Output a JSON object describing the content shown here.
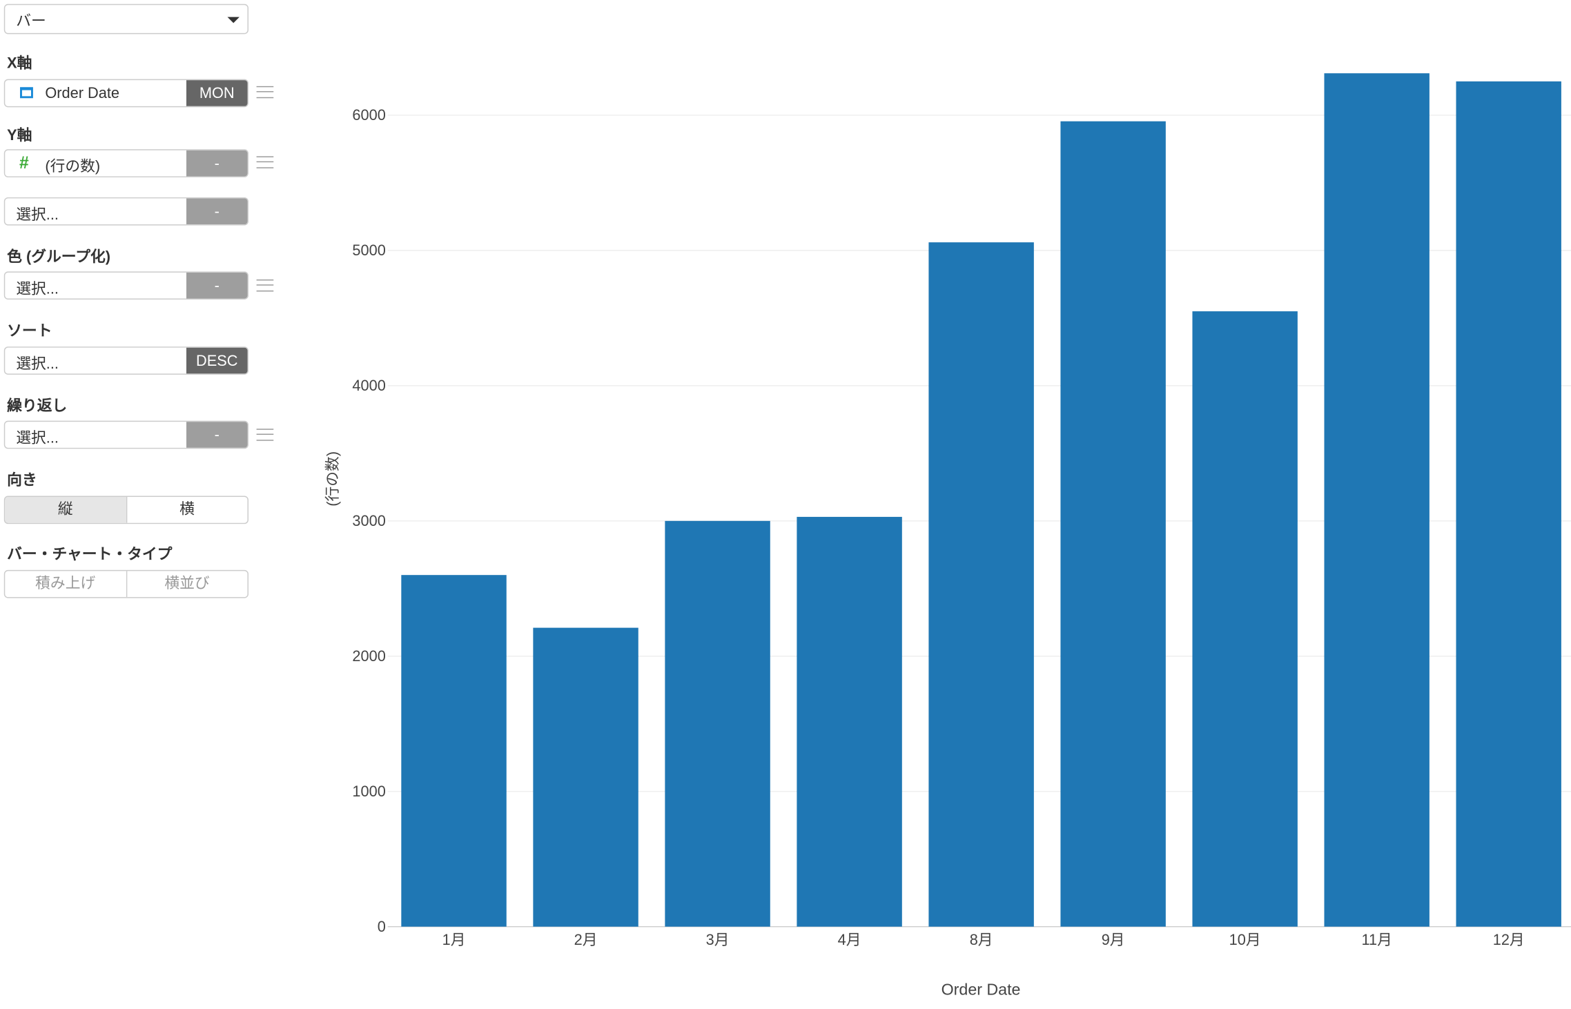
{
  "panel": {
    "chart_type": "バー",
    "x_axis": {
      "label": "X軸",
      "field": "Order Date",
      "field_icon": "calendar-icon",
      "unit": "MON"
    },
    "y_axis": {
      "label": "Y軸",
      "field": "(行の数)",
      "field_icon": "hash-icon",
      "agg": "-",
      "second_field": "選択...",
      "second_agg": "-"
    },
    "color": {
      "label": "色 (グループ化)",
      "field": "選択...",
      "agg": "-"
    },
    "sort": {
      "label": "ソート",
      "field": "選択...",
      "order": "DESC"
    },
    "repeat": {
      "label": "繰り返し",
      "field": "選択...",
      "agg": "-"
    },
    "orientation": {
      "label": "向き",
      "options": [
        "縦",
        "横"
      ],
      "selected": "縦"
    },
    "bar_type": {
      "label": "バー・チャート・タイプ",
      "options": [
        "積み上げ",
        "横並び"
      ]
    }
  },
  "colors": {
    "bar": "#1f77b4",
    "calendar_icon": "#1a8ad8",
    "hash_icon": "#3aaa35"
  },
  "chart_data": {
    "type": "bar",
    "categories": [
      "1月",
      "2月",
      "3月",
      "4月",
      "8月",
      "9月",
      "10月",
      "11月",
      "12月"
    ],
    "values": [
      2600,
      2210,
      3000,
      3030,
      5060,
      5955,
      4550,
      6310,
      6250
    ],
    "xlabel": "Order Date",
    "ylabel": "(行の数)",
    "ylim": [
      0,
      6500
    ],
    "yticks": [
      "0",
      "1000",
      "2000",
      "3000",
      "4000",
      "5000",
      "6000"
    ],
    "grid": true
  }
}
